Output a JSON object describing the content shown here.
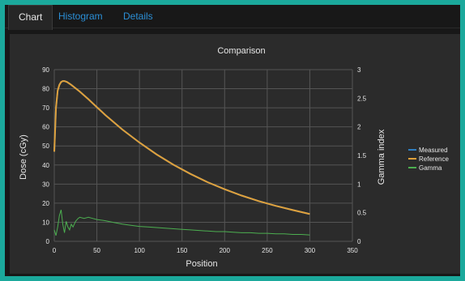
{
  "tabs": [
    {
      "label": "Chart",
      "active": true
    },
    {
      "label": "Histogram",
      "active": false
    },
    {
      "label": "Details",
      "active": false
    }
  ],
  "colors": {
    "measured": "#2f7fc1",
    "reference": "#e0a03a",
    "gamma": "#4caf50",
    "grid": "#555555",
    "text": "#e6e6e6",
    "background": "#2b2b2b"
  },
  "chart_data": {
    "type": "line",
    "title": "Comparison",
    "xlabel": "Position",
    "ylabel": "Dose (cGy)",
    "y2label": "Gamma index",
    "xlim": [
      0,
      350
    ],
    "ylim": [
      0,
      90
    ],
    "y2lim": [
      0,
      3
    ],
    "xticks": [
      0,
      50,
      100,
      150,
      200,
      250,
      300,
      350
    ],
    "yticks": [
      0,
      10,
      20,
      30,
      40,
      50,
      60,
      70,
      80,
      90
    ],
    "y2ticks": [
      "0",
      "0.5",
      "1",
      "1.5",
      "2",
      "2.5",
      "3"
    ],
    "grid": true,
    "legend_position": "right",
    "series": [
      {
        "name": "Measured",
        "axis": "left",
        "x": [
          0,
          2,
          4,
          6,
          8,
          10,
          12,
          15,
          20,
          30,
          40,
          50,
          60,
          80,
          100,
          120,
          140,
          160,
          180,
          200,
          220,
          240,
          260,
          280,
          300
        ],
        "y": [
          47,
          70,
          79,
          82,
          83.5,
          84,
          84,
          83.5,
          82,
          78.5,
          74.5,
          70.3,
          66.2,
          58.6,
          51.8,
          45.6,
          40.1,
          35.3,
          31,
          27.3,
          24,
          21.1,
          18.6,
          16.4,
          14.3
        ]
      },
      {
        "name": "Reference",
        "axis": "left",
        "x": [
          0,
          2,
          4,
          6,
          8,
          10,
          12,
          15,
          20,
          30,
          40,
          50,
          60,
          80,
          100,
          120,
          140,
          160,
          180,
          200,
          220,
          240,
          260,
          280,
          300
        ],
        "y": [
          47,
          70,
          79,
          82,
          83.5,
          84,
          84,
          83.5,
          82,
          78.5,
          74.5,
          70.3,
          66.2,
          58.6,
          51.8,
          45.6,
          40.1,
          35.3,
          31,
          27.3,
          24,
          21.1,
          18.6,
          16.4,
          14.3
        ]
      },
      {
        "name": "Gamma",
        "axis": "right",
        "x": [
          0,
          2,
          4,
          6,
          8,
          10,
          12,
          14,
          16,
          18,
          20,
          22,
          25,
          28,
          30,
          35,
          40,
          45,
          50,
          60,
          70,
          80,
          90,
          100,
          110,
          120,
          130,
          140,
          150,
          160,
          170,
          180,
          190,
          200,
          210,
          220,
          230,
          240,
          250,
          260,
          270,
          280,
          290,
          300
        ],
        "y": [
          0.2,
          0.1,
          0.25,
          0.45,
          0.55,
          0.3,
          0.15,
          0.35,
          0.25,
          0.2,
          0.3,
          0.25,
          0.35,
          0.4,
          0.42,
          0.4,
          0.42,
          0.4,
          0.38,
          0.36,
          0.33,
          0.3,
          0.28,
          0.26,
          0.25,
          0.24,
          0.23,
          0.22,
          0.21,
          0.2,
          0.19,
          0.18,
          0.17,
          0.17,
          0.16,
          0.15,
          0.15,
          0.14,
          0.14,
          0.13,
          0.13,
          0.12,
          0.12,
          0.11
        ]
      }
    ]
  }
}
